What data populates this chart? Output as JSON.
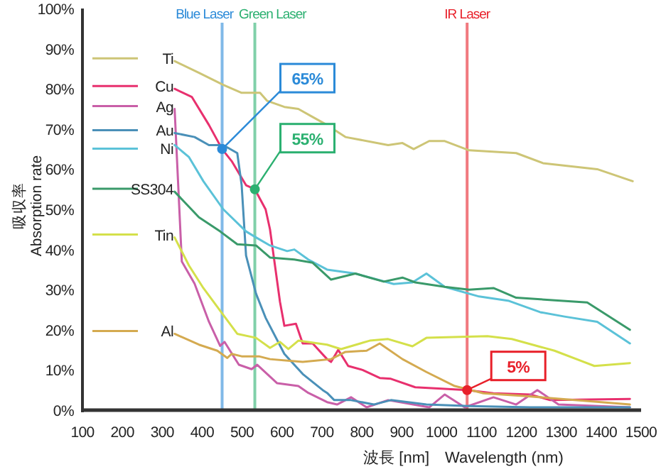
{
  "chart_data": {
    "type": "line",
    "xlabel": "波長 [nm]　Wavelength (nm)",
    "ylabel": "吸収率\nAbsorption rate",
    "xlim": [
      100,
      1500
    ],
    "ylim": [
      0,
      100
    ],
    "xticks": [
      100,
      200,
      300,
      400,
      500,
      600,
      700,
      800,
      900,
      1000,
      1100,
      1200,
      1300,
      1400,
      1500
    ],
    "yticks": [
      {
        "value": 0,
        "label": "0%"
      },
      {
        "value": 10,
        "label": "10%"
      },
      {
        "value": 20,
        "label": "20%"
      },
      {
        "value": 30,
        "label": "30%"
      },
      {
        "value": 40,
        "label": "40%"
      },
      {
        "value": 50,
        "label": "50%"
      },
      {
        "value": 60,
        "label": "60%"
      },
      {
        "value": 70,
        "label": "70%"
      },
      {
        "value": 80,
        "label": "80%"
      },
      {
        "value": 90,
        "label": "90%"
      },
      {
        "value": 100,
        "label": "100%"
      }
    ],
    "grid": false,
    "legend": "left",
    "marker": "none",
    "line_style": "solid",
    "series": [
      {
        "name": "Ti",
        "color": "#cdc576",
        "x": [
          331,
          392,
          453,
          499,
          545,
          563,
          606,
          641,
          677,
          713,
          759,
          866,
          902,
          930,
          969,
          1008,
          1069,
          1187,
          1254,
          1390,
          1479
        ],
        "values": [
          86.9,
          84,
          81,
          79,
          79,
          77,
          75.5,
          75,
          73,
          71,
          68,
          66,
          66.5,
          65,
          67,
          67,
          64.7,
          64,
          61.5,
          60,
          57
        ]
      },
      {
        "name": "Cu",
        "color": "#e8306e",
        "x": [
          331,
          374,
          417,
          450,
          474,
          510,
          532,
          559,
          570,
          595,
          606,
          635,
          652,
          677,
          713,
          723,
          741,
          766,
          802,
          845,
          873,
          934,
          1008,
          1064,
          1130,
          1222,
          1272,
          1472
        ],
        "values": [
          80,
          78,
          71,
          65,
          62,
          56,
          55,
          50,
          45,
          27,
          21,
          21.5,
          16.6,
          16.6,
          12.7,
          12,
          15,
          11,
          10,
          8,
          7.8,
          5.7,
          5.3,
          5,
          4.2,
          3.9,
          2.5,
          2.8
        ]
      },
      {
        "name": "Ag",
        "color": "#c95fa8",
        "x": [
          331,
          349,
          381,
          417,
          445,
          456,
          492,
          524,
          538,
          563,
          588,
          641,
          666,
          713,
          738,
          773,
          812,
          866,
          969,
          1008,
          1058,
          1130,
          1187,
          1240,
          1293,
          1472
        ],
        "values": [
          75,
          37,
          31.5,
          22,
          16,
          17,
          11.3,
          10.2,
          11.3,
          9,
          6.7,
          6,
          4.3,
          2,
          1.4,
          3.2,
          0.7,
          2.5,
          0.7,
          3.9,
          0.7,
          3.2,
          1.4,
          5,
          1.4,
          0.7
        ]
      },
      {
        "name": "Au",
        "color": "#4a90b8",
        "x": [
          331,
          381,
          417,
          453,
          488,
          499,
          510,
          535,
          559,
          606,
          652,
          702,
          713,
          731,
          773,
          830,
          873,
          962,
          1069,
          1222,
          1472
        ],
        "values": [
          69,
          68,
          66,
          66,
          64,
          56,
          38.5,
          29,
          23,
          14,
          9,
          5,
          4.3,
          2.5,
          2.5,
          1.4,
          2.5,
          1.4,
          1,
          0.7,
          0.7
        ]
      },
      {
        "name": "Ni",
        "color": "#5bc2d8",
        "x": [
          331,
          367,
          403,
          453,
          510,
          535,
          570,
          613,
          631,
          666,
          713,
          784,
          880,
          927,
          962,
          1008,
          1094,
          1169,
          1247,
          1308,
          1390,
          1472
        ],
        "values": [
          66,
          63,
          57,
          50,
          44.5,
          43,
          41,
          39.6,
          40,
          37.5,
          35,
          34,
          31.4,
          31.8,
          34,
          30.7,
          28.3,
          27.2,
          24.4,
          23.3,
          22,
          16.6
        ]
      },
      {
        "name": "SS304",
        "color": "#3a9a6a",
        "x": [
          331,
          392,
          445,
          488,
          535,
          570,
          631,
          677,
          723,
          784,
          855,
          902,
          934,
          1008,
          1069,
          1130,
          1187,
          1365,
          1472
        ],
        "values": [
          54.4,
          48,
          44.5,
          41.3,
          41,
          38,
          37.5,
          36.7,
          32.5,
          34,
          32,
          33,
          31.8,
          30.7,
          30,
          30.4,
          28,
          26.8,
          20
        ]
      },
      {
        "name": "Tin",
        "color": "#d4e04a",
        "x": [
          331,
          367,
          403,
          453,
          488,
          535,
          570,
          595,
          616,
          641,
          713,
          748,
          820,
          866,
          927,
          962,
          1115,
          1176,
          1283,
          1383,
          1472
        ],
        "values": [
          43,
          36,
          30.4,
          23.7,
          19,
          18,
          15.5,
          17,
          15.2,
          17.3,
          16.3,
          15.2,
          17.3,
          17.7,
          15.9,
          18,
          18.4,
          17.7,
          14.8,
          11,
          11.7
        ]
      },
      {
        "name": "Al",
        "color": "#d4aa50",
        "x": [
          331,
          392,
          438,
          463,
          474,
          499,
          542,
          570,
          652,
          723,
          759,
          812,
          845,
          902,
          962,
          1033,
          1105,
          1212,
          1472
        ],
        "values": [
          19,
          16.3,
          14.8,
          13,
          14,
          13.4,
          13.4,
          12.7,
          12,
          12.7,
          14.5,
          14.8,
          16.6,
          12.7,
          9.5,
          6,
          4.2,
          3.5,
          1.4
        ]
      }
    ],
    "ref_lines": [
      {
        "axis": "x",
        "value": 450,
        "label": "Blue Laser",
        "color": "#2b8ad8"
      },
      {
        "axis": "x",
        "value": 532,
        "label": "Green Laser",
        "color": "#2bb070"
      },
      {
        "axis": "x",
        "value": 1064,
        "label": "IR Laser",
        "color": "#e8202a"
      }
    ],
    "annotations": [
      {
        "text": "65%",
        "x": 450,
        "y": 65
      },
      {
        "text": "55%",
        "x": 532,
        "y": 55
      },
      {
        "text": "5%",
        "x": 1064,
        "y": 5
      }
    ]
  }
}
